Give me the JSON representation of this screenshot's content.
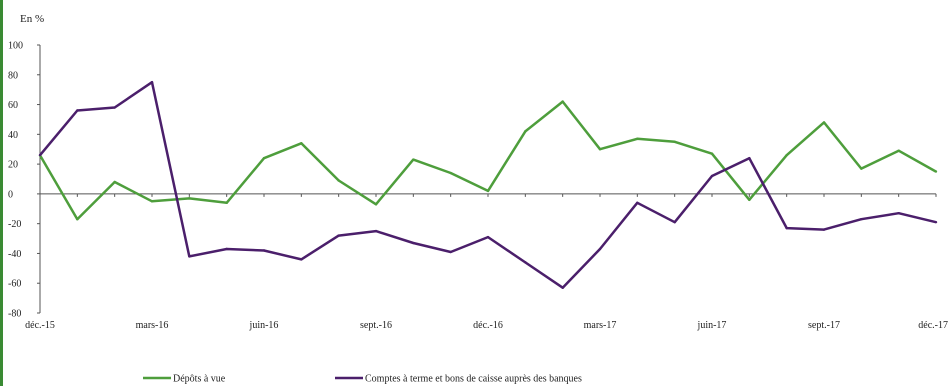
{
  "chart_data": {
    "type": "line",
    "unit_label": "En %",
    "categories": [
      "déc.-15",
      "janv.-16",
      "févr.-16",
      "mars-16",
      "avr.-16",
      "mai-16",
      "juin-16",
      "juil.-16",
      "août-16",
      "sept.-16",
      "oct.-16",
      "nov.-16",
      "déc.-16",
      "janv.-17",
      "févr.-17",
      "mars-17",
      "avr.-17",
      "mai-17",
      "juin-17",
      "juil.-17",
      "août-17",
      "sept.-17",
      "oct.-17",
      "nov.-17",
      "déc.-17"
    ],
    "x_tick_labels": [
      "déc.-15",
      "mars-16",
      "juin-16",
      "sept.-16",
      "déc.-16",
      "mars-17",
      "juin-17",
      "sept.-17",
      "déc.-17"
    ],
    "y_ticks": [
      100,
      80,
      60,
      40,
      20,
      0,
      -20,
      -40,
      -60,
      -80
    ],
    "ylim": [
      -80,
      100
    ],
    "grid": false,
    "legend_position": "bottom",
    "series": [
      {
        "name": "Dépôts à vue",
        "color": "#4e9e3c",
        "values": [
          26,
          -17,
          8,
          -5,
          -3,
          -6,
          24,
          34,
          9,
          -7,
          23,
          14,
          2,
          42,
          62,
          30,
          37,
          35,
          27,
          -4,
          26,
          48,
          17,
          29,
          15
        ]
      },
      {
        "name": "Comptes à terme et bons de caisse auprès des banques",
        "color": "#4b1f6b",
        "values": [
          26,
          56,
          58,
          75,
          -42,
          -37,
          -38,
          -44,
          -28,
          -25,
          -33,
          -39,
          -29,
          -46,
          -63,
          -37,
          -6,
          -19,
          12,
          24,
          -23,
          -24,
          -17,
          -13,
          -19
        ]
      }
    ]
  }
}
